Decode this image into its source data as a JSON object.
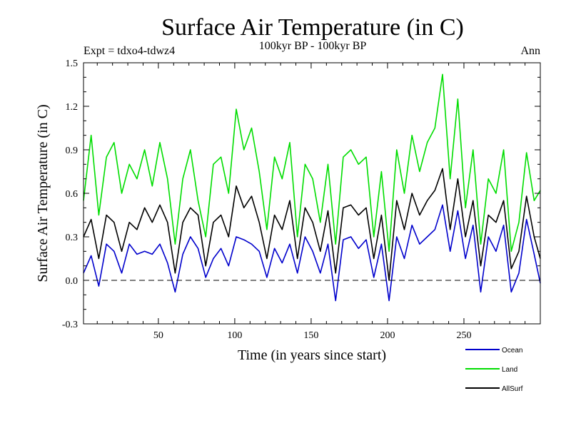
{
  "chart_data": {
    "type": "line",
    "title": "Surface Air Temperature (in C)",
    "subtitle_left": "Expt = tdxo4-tdwz4",
    "subtitle_center": "100kyr BP - 100kyr BP",
    "subtitle_right": "Ann",
    "xlabel": "Time (in years since start)",
    "ylabel": "Surface Air Temperature (in C)",
    "xlim": [
      1,
      300
    ],
    "ylim": [
      -0.3,
      1.5
    ],
    "xticks": [
      50,
      100,
      150,
      200,
      250
    ],
    "yticks": [
      -0.3,
      0.0,
      0.3,
      0.6,
      0.9,
      1.2,
      1.5
    ],
    "ytick_labels": [
      "-0.3",
      "0.0",
      "0.3",
      "0.6",
      "0.9",
      "1.2",
      "1.5"
    ],
    "zero_line": true,
    "grid": false,
    "legend_position": "bottom-right",
    "x": [
      1,
      6,
      11,
      16,
      21,
      26,
      31,
      36,
      41,
      46,
      51,
      56,
      61,
      66,
      71,
      76,
      81,
      86,
      91,
      96,
      101,
      106,
      111,
      116,
      121,
      126,
      131,
      136,
      141,
      146,
      151,
      156,
      161,
      166,
      171,
      176,
      181,
      186,
      191,
      196,
      201,
      206,
      211,
      216,
      221,
      226,
      231,
      236,
      241,
      246,
      251,
      256,
      261,
      266,
      271,
      276,
      281,
      286,
      291,
      296,
      300
    ],
    "series": [
      {
        "name": "Ocean",
        "color": "#0000cc",
        "values": [
          0.05,
          0.17,
          -0.04,
          0.25,
          0.2,
          0.05,
          0.25,
          0.18,
          0.2,
          0.18,
          0.25,
          0.12,
          -0.08,
          0.18,
          0.3,
          0.22,
          0.02,
          0.15,
          0.22,
          0.1,
          0.3,
          0.28,
          0.25,
          0.2,
          0.02,
          0.22,
          0.12,
          0.25,
          0.05,
          0.3,
          0.2,
          0.05,
          0.25,
          -0.14,
          0.28,
          0.3,
          0.22,
          0.28,
          0.02,
          0.25,
          -0.14,
          0.3,
          0.15,
          0.38,
          0.25,
          0.3,
          0.35,
          0.52,
          0.2,
          0.48,
          0.15,
          0.38,
          -0.08,
          0.3,
          0.2,
          0.38,
          -0.08,
          0.05,
          0.42,
          0.18,
          -0.02
        ]
      },
      {
        "name": "Land",
        "color": "#00dd00",
        "values": [
          0.55,
          1.0,
          0.45,
          0.85,
          0.95,
          0.6,
          0.8,
          0.7,
          0.9,
          0.65,
          0.95,
          0.7,
          0.25,
          0.7,
          0.9,
          0.55,
          0.3,
          0.8,
          0.85,
          0.6,
          1.18,
          0.9,
          1.05,
          0.75,
          0.35,
          0.85,
          0.7,
          0.95,
          0.3,
          0.8,
          0.7,
          0.4,
          0.8,
          0.25,
          0.85,
          0.9,
          0.8,
          0.85,
          0.3,
          0.75,
          0.2,
          0.9,
          0.6,
          1.0,
          0.75,
          0.95,
          1.05,
          1.42,
          0.7,
          1.25,
          0.5,
          0.9,
          0.25,
          0.7,
          0.6,
          0.9,
          0.2,
          0.4,
          0.88,
          0.55,
          0.62
        ]
      },
      {
        "name": "AllSurf",
        "color": "#000000",
        "values": [
          0.3,
          0.42,
          0.15,
          0.45,
          0.4,
          0.2,
          0.4,
          0.35,
          0.5,
          0.4,
          0.52,
          0.4,
          0.05,
          0.4,
          0.5,
          0.45,
          0.1,
          0.4,
          0.45,
          0.3,
          0.65,
          0.5,
          0.58,
          0.4,
          0.15,
          0.45,
          0.35,
          0.55,
          0.15,
          0.5,
          0.4,
          0.2,
          0.48,
          0.05,
          0.5,
          0.52,
          0.45,
          0.5,
          0.15,
          0.45,
          0.0,
          0.55,
          0.35,
          0.6,
          0.45,
          0.55,
          0.62,
          0.77,
          0.35,
          0.7,
          0.3,
          0.55,
          0.1,
          0.45,
          0.4,
          0.55,
          0.08,
          0.2,
          0.58,
          0.3,
          0.15
        ]
      }
    ]
  }
}
